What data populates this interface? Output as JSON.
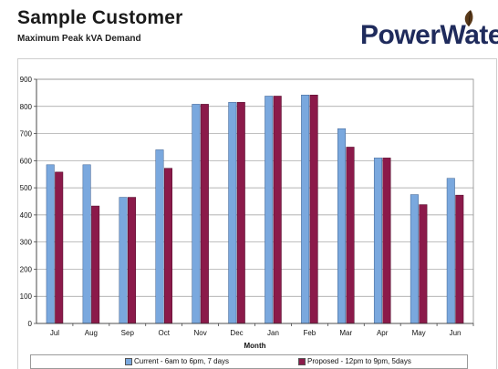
{
  "header": {
    "title": "Sample Customer",
    "subtitle": "Maximum Peak kVA Demand"
  },
  "logo": {
    "text": "PowerWater",
    "brand_color": "#1f2b5c",
    "leaf_icon": "leaf-icon",
    "leaf_color": "#5a3a1a"
  },
  "colors": {
    "current": "#7aa8de",
    "proposed": "#8b1a4a"
  },
  "chart_data": {
    "type": "bar",
    "title": "",
    "xlabel": "Month",
    "ylabel": "",
    "ylim": [
      0,
      900
    ],
    "yticks": [
      0,
      100,
      200,
      300,
      400,
      500,
      600,
      700,
      800,
      900
    ],
    "grid": true,
    "legend": "bottom",
    "categories": [
      "Jul",
      "Aug",
      "Sep",
      "Oct",
      "Nov",
      "Dec",
      "Jan",
      "Feb",
      "Mar",
      "Apr",
      "May",
      "Jun"
    ],
    "series": [
      {
        "name": "Current - 6am to 6pm, 7 days",
        "values": [
          585,
          585,
          465,
          640,
          808,
          815,
          838,
          842,
          718,
          610,
          475,
          535
        ]
      },
      {
        "name": "Proposed - 12pm to 9pm, 5days",
        "values": [
          558,
          433,
          465,
          572,
          808,
          815,
          838,
          842,
          650,
          610,
          438,
          473
        ]
      }
    ]
  }
}
